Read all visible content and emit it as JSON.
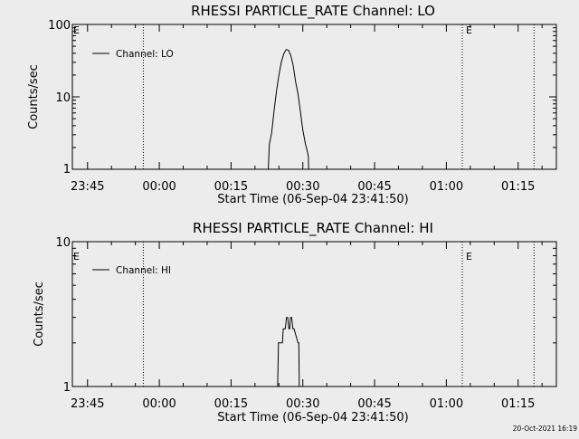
{
  "chart_data": [
    {
      "type": "line",
      "title": "RHESSI PARTICLE_RATE Channel: LO",
      "ylabel": "Counts/sec",
      "xlabel": "Start Time (06-Sep-04 23:41:50)",
      "y_scale": "log",
      "ylim": [
        1,
        100
      ],
      "ytick_labels": [
        "1",
        "10",
        "100"
      ],
      "ytick_values": [
        1,
        10,
        100
      ],
      "xlim": [
        "23:41:50",
        "01:23:00"
      ],
      "xtick_labels": [
        "23:45",
        "00:00",
        "00:15",
        "00:30",
        "00:45",
        "01:00",
        "01:15"
      ],
      "xtick_minutes": [
        3.17,
        18.17,
        33.17,
        48.17,
        63.17,
        78.17,
        93.17
      ],
      "legend": {
        "entries": [
          "Channel: LO"
        ],
        "position": "top-left"
      },
      "vertical_lines": [
        {
          "x": "23:56:40",
          "label": ""
        },
        {
          "x": "01:03:20",
          "label": "E"
        },
        {
          "x": "01:18:20",
          "label": ""
        }
      ],
      "left_marker_label": "E",
      "series": [
        {
          "name": "Channel: LO",
          "time": [
            "00:22:48",
            "00:23:00",
            "00:23:30",
            "00:24:00",
            "00:24:30",
            "00:25:00",
            "00:25:30",
            "00:26:00",
            "00:26:30",
            "00:27:00",
            "00:27:30",
            "00:28:00",
            "00:28:30",
            "00:29:00",
            "00:29:30",
            "00:30:00",
            "00:30:30",
            "00:31:00",
            "00:31:10",
            "00:31:12"
          ],
          "values": [
            1,
            2.2,
            3.2,
            6.5,
            12,
            20,
            30,
            39,
            45,
            44,
            37,
            27,
            16,
            11,
            6.2,
            3.5,
            2.3,
            1.7,
            1.5,
            1
          ]
        }
      ]
    },
    {
      "type": "line",
      "title": "RHESSI PARTICLE_RATE Channel: HI",
      "ylabel": "Counts/sec",
      "xlabel": "Start Time (06-Sep-04 23:41:50)",
      "y_scale": "log",
      "ylim": [
        1,
        10
      ],
      "ytick_labels": [
        "1",
        "10"
      ],
      "ytick_values": [
        1,
        10
      ],
      "xlim": [
        "23:41:50",
        "01:23:00"
      ],
      "xtick_labels": [
        "23:45",
        "00:00",
        "00:15",
        "00:30",
        "00:45",
        "01:00",
        "01:15"
      ],
      "xtick_minutes": [
        3.17,
        18.17,
        33.17,
        48.17,
        63.17,
        78.17,
        93.17
      ],
      "legend": {
        "entries": [
          "Channel: HI"
        ],
        "position": "top-left"
      },
      "vertical_lines": [
        {
          "x": "23:56:40",
          "label": ""
        },
        {
          "x": "01:03:20",
          "label": "E"
        },
        {
          "x": "01:18:20",
          "label": ""
        }
      ],
      "left_marker_label": "E",
      "series": [
        {
          "name": "Channel: HI",
          "time": [
            "00:24:44",
            "00:24:55",
            "00:25:45",
            "00:25:55",
            "00:26:20",
            "00:26:35",
            "00:26:50",
            "00:27:05",
            "00:27:15",
            "00:27:25",
            "00:27:40",
            "00:27:55",
            "00:28:10",
            "00:29:00",
            "00:29:10",
            "00:29:15"
          ],
          "values": [
            1,
            2,
            2,
            2.5,
            2.5,
            3,
            3,
            2.5,
            2.5,
            3,
            3,
            2.5,
            2.5,
            2,
            2,
            1
          ]
        }
      ]
    }
  ],
  "footer": {
    "timestamp": "20-Oct-2021 16:19"
  },
  "style": {
    "background": "#ececec",
    "foreground": "#000000"
  }
}
